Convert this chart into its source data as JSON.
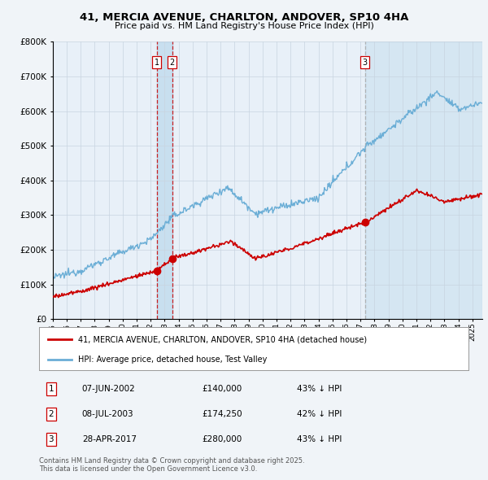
{
  "title1": "41, MERCIA AVENUE, CHARLTON, ANDOVER, SP10 4HA",
  "title2": "Price paid vs. HM Land Registry's House Price Index (HPI)",
  "ylim": [
    0,
    800000
  ],
  "xlim_start": 1995,
  "xlim_end": 2025.7,
  "transactions": [
    {
      "label": "1",
      "date": "07-JUN-2002",
      "price": 140000,
      "year": 2002.44,
      "pct": "43% ↓ HPI"
    },
    {
      "label": "2",
      "date": "08-JUL-2003",
      "price": 174250,
      "year": 2003.54,
      "pct": "42% ↓ HPI"
    },
    {
      "label": "3",
      "date": "28-APR-2017",
      "price": 280000,
      "year": 2017.32,
      "pct": "43% ↓ HPI"
    }
  ],
  "legend_line1": "41, MERCIA AVENUE, CHARLTON, ANDOVER, SP10 4HA (detached house)",
  "legend_line2": "HPI: Average price, detached house, Test Valley",
  "footnote": "Contains HM Land Registry data © Crown copyright and database right 2025.\nThis data is licensed under the Open Government Licence v3.0.",
  "hpi_color": "#6baed6",
  "price_color": "#cc0000",
  "vline1_color": "#cc0000",
  "vline2_color": "#aaaaaa",
  "shade_color": "#ddeeff",
  "background_color": "#f0f4f8",
  "chart_bg": "#e8f0f8"
}
